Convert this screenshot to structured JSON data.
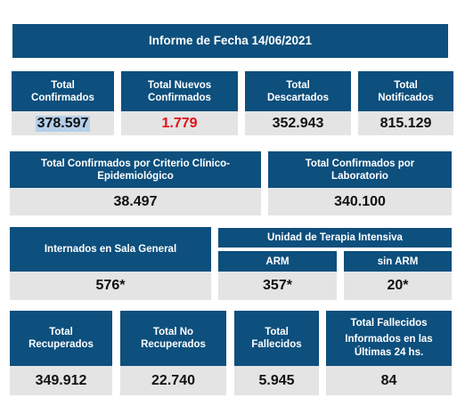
{
  "title": "Informe de Fecha 14/06/2021",
  "row1": [
    {
      "label_l1": "Total",
      "label_l2": "Confirmados",
      "value": "378.597"
    },
    {
      "label_l1": "Total Nuevos",
      "label_l2": "Confirmados",
      "value": "1.779"
    },
    {
      "label_l1": "Total",
      "label_l2": "Descartados",
      "value": "352.943"
    },
    {
      "label_l1": "Total",
      "label_l2": "Notificados",
      "value": "815.129"
    }
  ],
  "row2": [
    {
      "label_l1": "Total Confirmados por Criterio Clínico-",
      "label_l2": "Epidemiológico",
      "value": "38.497"
    },
    {
      "label_l1": "Total Confirmados por",
      "label_l2": "Laboratorio",
      "value": "340.100"
    }
  ],
  "row3": {
    "sala_label": "Internados en Sala General",
    "sala_value": "576*",
    "uti_label": "Unidad de Terapia Intensiva",
    "arm_label": "ARM",
    "arm_value": "357*",
    "sin_arm_label": "sin ARM",
    "sin_arm_value": "20*"
  },
  "row4": [
    {
      "label_l1": "Total",
      "label_l2": "Recuperados",
      "value": "349.912"
    },
    {
      "label_l1": "Total No",
      "label_l2": "Recuperados",
      "value": "22.740"
    },
    {
      "label_l1": "Total",
      "label_l2": "Fallecidos",
      "value": "5.945"
    },
    {
      "label_l1": "Total Fallecidos",
      "label_l2": "Informados en las",
      "label_l3": "Últimas 24 hs.",
      "value": "84"
    }
  ],
  "colors": {
    "header": "#0d4f7d",
    "value_bg": "#e4e4e4",
    "highlight_red": "#e0101a"
  }
}
